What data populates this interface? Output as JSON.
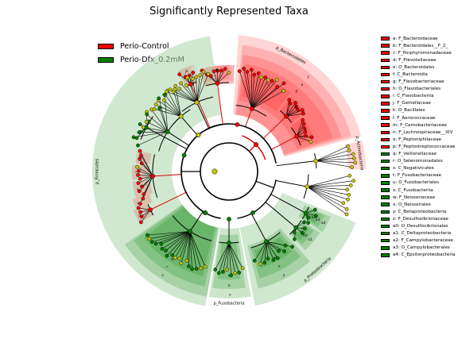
{
  "title": "Significantly Represented Taxa",
  "legend": [
    {
      "label": "Perio-Control",
      "color": "#ff0000"
    },
    {
      "label": "Perio-Dfx_0.2mM",
      "color": "#008000"
    }
  ],
  "colors": {
    "control": "#ff0000",
    "dfx": "#008000",
    "neutral": "#c8c800",
    "control_shade": "#ffb3b3",
    "dfx_shade": "#a9d3a9"
  },
  "taxa": [
    {
      "letter": "a",
      "label": "a: F_Bacteroidaceae",
      "group": "control"
    },
    {
      "letter": "b",
      "label": "b: F_Bacteroidales__F_2_",
      "group": "control"
    },
    {
      "letter": "c",
      "label": "c: F_Porphyromonadaceae",
      "group": "control"
    },
    {
      "letter": "d",
      "label": "d: F_Prevotellaceae",
      "group": "control"
    },
    {
      "letter": "e",
      "label": "e: O_Bacteroidales",
      "group": "control"
    },
    {
      "letter": "f",
      "label": "f: C_Bacteroidia",
      "group": "control"
    },
    {
      "letter": "g",
      "label": "g: F_Flavobacteriaceae",
      "group": "control"
    },
    {
      "letter": "h",
      "label": "h: O_Flavobacteriales",
      "group": "control"
    },
    {
      "letter": "i",
      "label": "i: C_Flavobacteriia",
      "group": "control"
    },
    {
      "letter": "j",
      "label": "j: F_Gemellaceae",
      "group": "control"
    },
    {
      "letter": "k",
      "label": "k: O_Bacillales",
      "group": "control"
    },
    {
      "letter": "l",
      "label": "l: F_Aerococcaceae",
      "group": "control"
    },
    {
      "letter": "m",
      "label": "m: F_Carnobacteriaceae",
      "group": "control"
    },
    {
      "letter": "n",
      "label": "n: F_Lachnospiraceae__XIV",
      "group": "control"
    },
    {
      "letter": "o",
      "label": "o: F_Peptoniphilaceae",
      "group": "control"
    },
    {
      "letter": "p",
      "label": "p: F_Peptostreptococcaceae",
      "group": "control"
    },
    {
      "letter": "q",
      "label": "q: F_Veillonellaceae",
      "group": "dfx"
    },
    {
      "letter": "r",
      "label": "r: O_Selenomonadales",
      "group": "dfx"
    },
    {
      "letter": "s",
      "label": "s: C_Negativicutes",
      "group": "dfx"
    },
    {
      "letter": "t",
      "label": "t: F_Fusobacteriaceae",
      "group": "dfx"
    },
    {
      "letter": "u",
      "label": "u: O_Fusobacteriales",
      "group": "dfx"
    },
    {
      "letter": "v",
      "label": "v: C_Fusobacteriia",
      "group": "dfx"
    },
    {
      "letter": "w",
      "label": "w: F_Neisseriaceae",
      "group": "dfx"
    },
    {
      "letter": "x",
      "label": "x: O_Neisseriales",
      "group": "dfx"
    },
    {
      "letter": "y",
      "label": "y: C_Betaproteobacteria",
      "group": "dfx"
    },
    {
      "letter": "z",
      "label": "z: F_Desulfovibrionaceae",
      "group": "dfx"
    },
    {
      "letter": "a0",
      "label": "a0: O_Desulfovibrionales",
      "group": "dfx"
    },
    {
      "letter": "a1",
      "label": "a1: C_Deltaproteobacteria",
      "group": "dfx"
    },
    {
      "letter": "a2",
      "label": "a2: F_Campylobacteraceae",
      "group": "dfx"
    },
    {
      "letter": "a3",
      "label": "a3: O_Campylobacterales",
      "group": "dfx"
    },
    {
      "letter": "a4",
      "label": "a4: C_Epsilonproteobacteria",
      "group": "dfx"
    }
  ],
  "phyla": [
    {
      "name": "p_Bacteroidetes",
      "group": "control"
    },
    {
      "name": "p_Actinobacteria",
      "group": "control"
    },
    {
      "name": "p_Firmicutes",
      "group": "dfx"
    },
    {
      "name": "p_Fusobacteria",
      "group": "dfx"
    },
    {
      "name": "p_Proteobacteria",
      "group": "dfx"
    }
  ]
}
